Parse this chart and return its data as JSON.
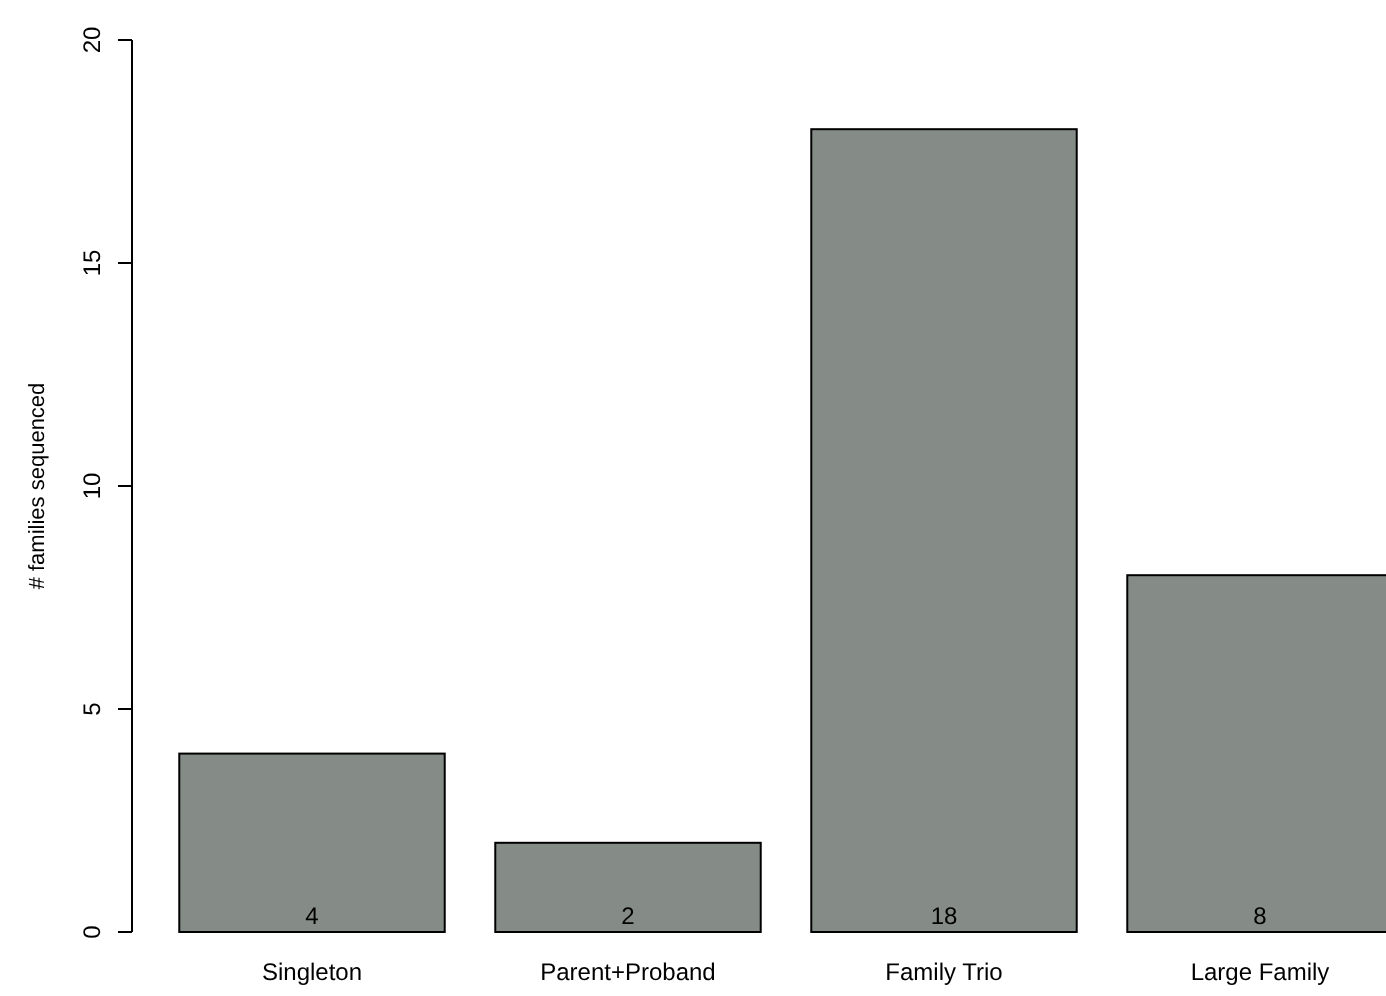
{
  "chart_data": {
    "type": "bar",
    "ylabel": "# families sequenced",
    "categories": [
      "Singleton",
      "Parent+Proband",
      "Family Trio",
      "Large Family"
    ],
    "values": [
      4,
      2,
      18,
      8
    ],
    "color": "#858c88",
    "ylim": [
      0,
      20
    ],
    "yticks": [
      0,
      5,
      10,
      15,
      20
    ],
    "data_labels": true,
    "grid": false
  }
}
